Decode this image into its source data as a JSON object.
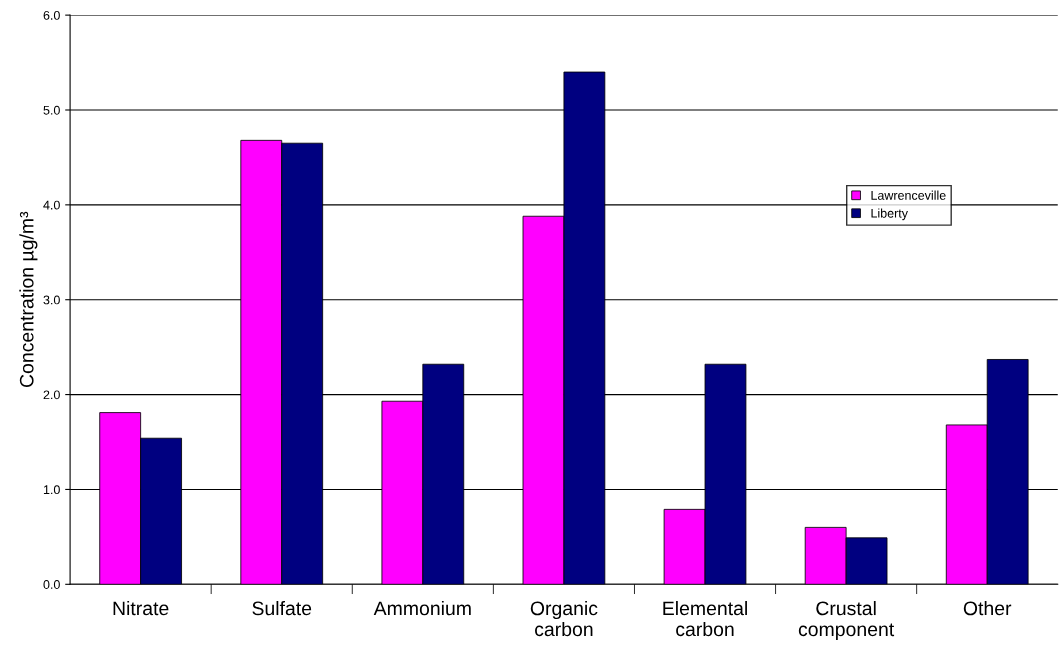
{
  "chart_data": {
    "type": "bar",
    "ylabel": "Concentration µg/m³",
    "categories": [
      "Nitrate",
      "Sulfate",
      "Ammonium",
      "Organic\ncarbon",
      "Elemental\ncarbon",
      "Crustal\ncomponent",
      "Other"
    ],
    "series": [
      {
        "name": "Lawrenceville",
        "color": "#ff00ff",
        "values": [
          1.81,
          4.68,
          1.93,
          3.88,
          0.79,
          0.6,
          1.68
        ]
      },
      {
        "name": "Liberty",
        "color": "#000080",
        "values": [
          1.54,
          4.65,
          2.32,
          5.4,
          2.32,
          0.49,
          2.37
        ]
      }
    ],
    "ylim": [
      0,
      6
    ],
    "yticks": [
      {
        "value": 0,
        "label": "0.0"
      },
      {
        "value": 1,
        "label": "1.0"
      },
      {
        "value": 2,
        "label": "2.0"
      },
      {
        "value": 3,
        "label": "3.0"
      },
      {
        "value": 4,
        "label": "4.0"
      },
      {
        "value": 5,
        "label": "5.0"
      },
      {
        "value": 6,
        "label": "6.0"
      }
    ],
    "grid": "y",
    "legend": "right"
  }
}
